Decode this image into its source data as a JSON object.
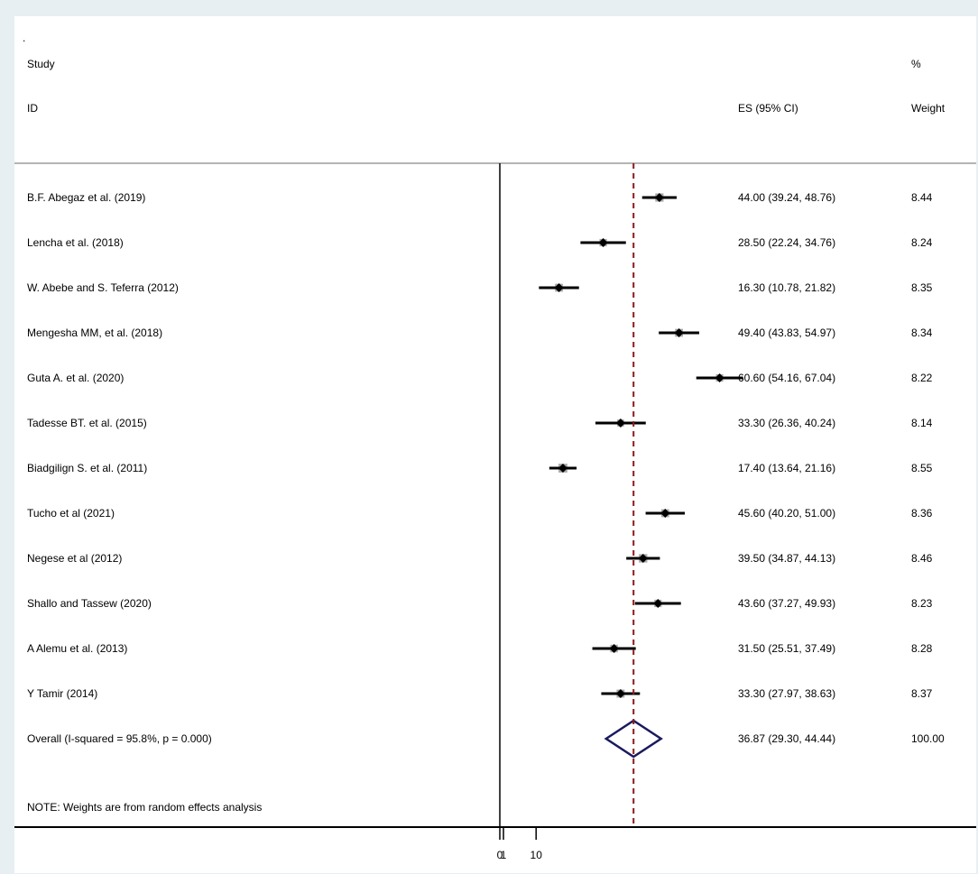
{
  "header": {
    "dot": ".",
    "study_label": "Study",
    "id_label": "ID",
    "es_label": "ES (95% CI)",
    "pct_label": "%",
    "weight_label": "Weight"
  },
  "note": "NOTE: Weights are from random effects analysis",
  "colors": {
    "ci_line": "#000000",
    "weight_box": "#a9a9a9",
    "diamond": "#1a1a5e",
    "reference_line": "#8b1a1a",
    "panel": "#ffffff",
    "frame": "#e8eff3"
  },
  "chart_data": {
    "type": "forest",
    "x_axis": {
      "ticks": [
        0,
        1,
        10
      ],
      "tick_labels": [
        "0",
        "1",
        "10"
      ],
      "null_line": 0
    },
    "studies": [
      {
        "id": "B.F. Abegaz et al. (2019)",
        "es": 44.0,
        "lo": 39.24,
        "hi": 48.76,
        "es_ci": "44.00 (39.24, 48.76)",
        "weight": "8.44"
      },
      {
        "id": "Lencha et al. (2018)",
        "es": 28.5,
        "lo": 22.24,
        "hi": 34.76,
        "es_ci": "28.50 (22.24, 34.76)",
        "weight": "8.24"
      },
      {
        "id": "W. Abebe and S. Teferra (2012)",
        "es": 16.3,
        "lo": 10.78,
        "hi": 21.82,
        "es_ci": "16.30 (10.78, 21.82)",
        "weight": "8.35"
      },
      {
        "id": "Mengesha MM, et al. (2018)",
        "es": 49.4,
        "lo": 43.83,
        "hi": 54.97,
        "es_ci": "49.40 (43.83, 54.97)",
        "weight": "8.34"
      },
      {
        "id": "Guta A. et al. (2020)",
        "es": 60.6,
        "lo": 54.16,
        "hi": 67.04,
        "es_ci": "60.60 (54.16, 67.04)",
        "weight": "8.22"
      },
      {
        "id": "Tadesse BT. et al. (2015)",
        "es": 33.3,
        "lo": 26.36,
        "hi": 40.24,
        "es_ci": "33.30 (26.36, 40.24)",
        "weight": "8.14"
      },
      {
        "id": "Biadgilign S. et al. (2011)",
        "es": 17.4,
        "lo": 13.64,
        "hi": 21.16,
        "es_ci": "17.40 (13.64, 21.16)",
        "weight": "8.55"
      },
      {
        "id": "Tucho et al (2021)",
        "es": 45.6,
        "lo": 40.2,
        "hi": 51.0,
        "es_ci": "45.60 (40.20, 51.00)",
        "weight": "8.36"
      },
      {
        "id": "Negese et al (2012)",
        "es": 39.5,
        "lo": 34.87,
        "hi": 44.13,
        "es_ci": "39.50 (34.87, 44.13)",
        "weight": "8.46"
      },
      {
        "id": "Shallo and Tassew (2020)",
        "es": 43.6,
        "lo": 37.27,
        "hi": 49.93,
        "es_ci": "43.60 (37.27, 49.93)",
        "weight": "8.23"
      },
      {
        "id": "A Alemu et al. (2013)",
        "es": 31.5,
        "lo": 25.51,
        "hi": 37.49,
        "es_ci": "31.50 (25.51, 37.49)",
        "weight": "8.28"
      },
      {
        "id": "Y Tamir (2014)",
        "es": 33.3,
        "lo": 27.97,
        "hi": 38.63,
        "es_ci": "33.30 (27.97, 38.63)",
        "weight": "8.37"
      }
    ],
    "overall": {
      "id": "Overall  (I-squared = 95.8%, p = 0.000)",
      "es": 36.87,
      "lo": 29.3,
      "hi": 44.44,
      "es_ci": "36.87 (29.30, 44.44)",
      "weight": "100.00"
    }
  }
}
